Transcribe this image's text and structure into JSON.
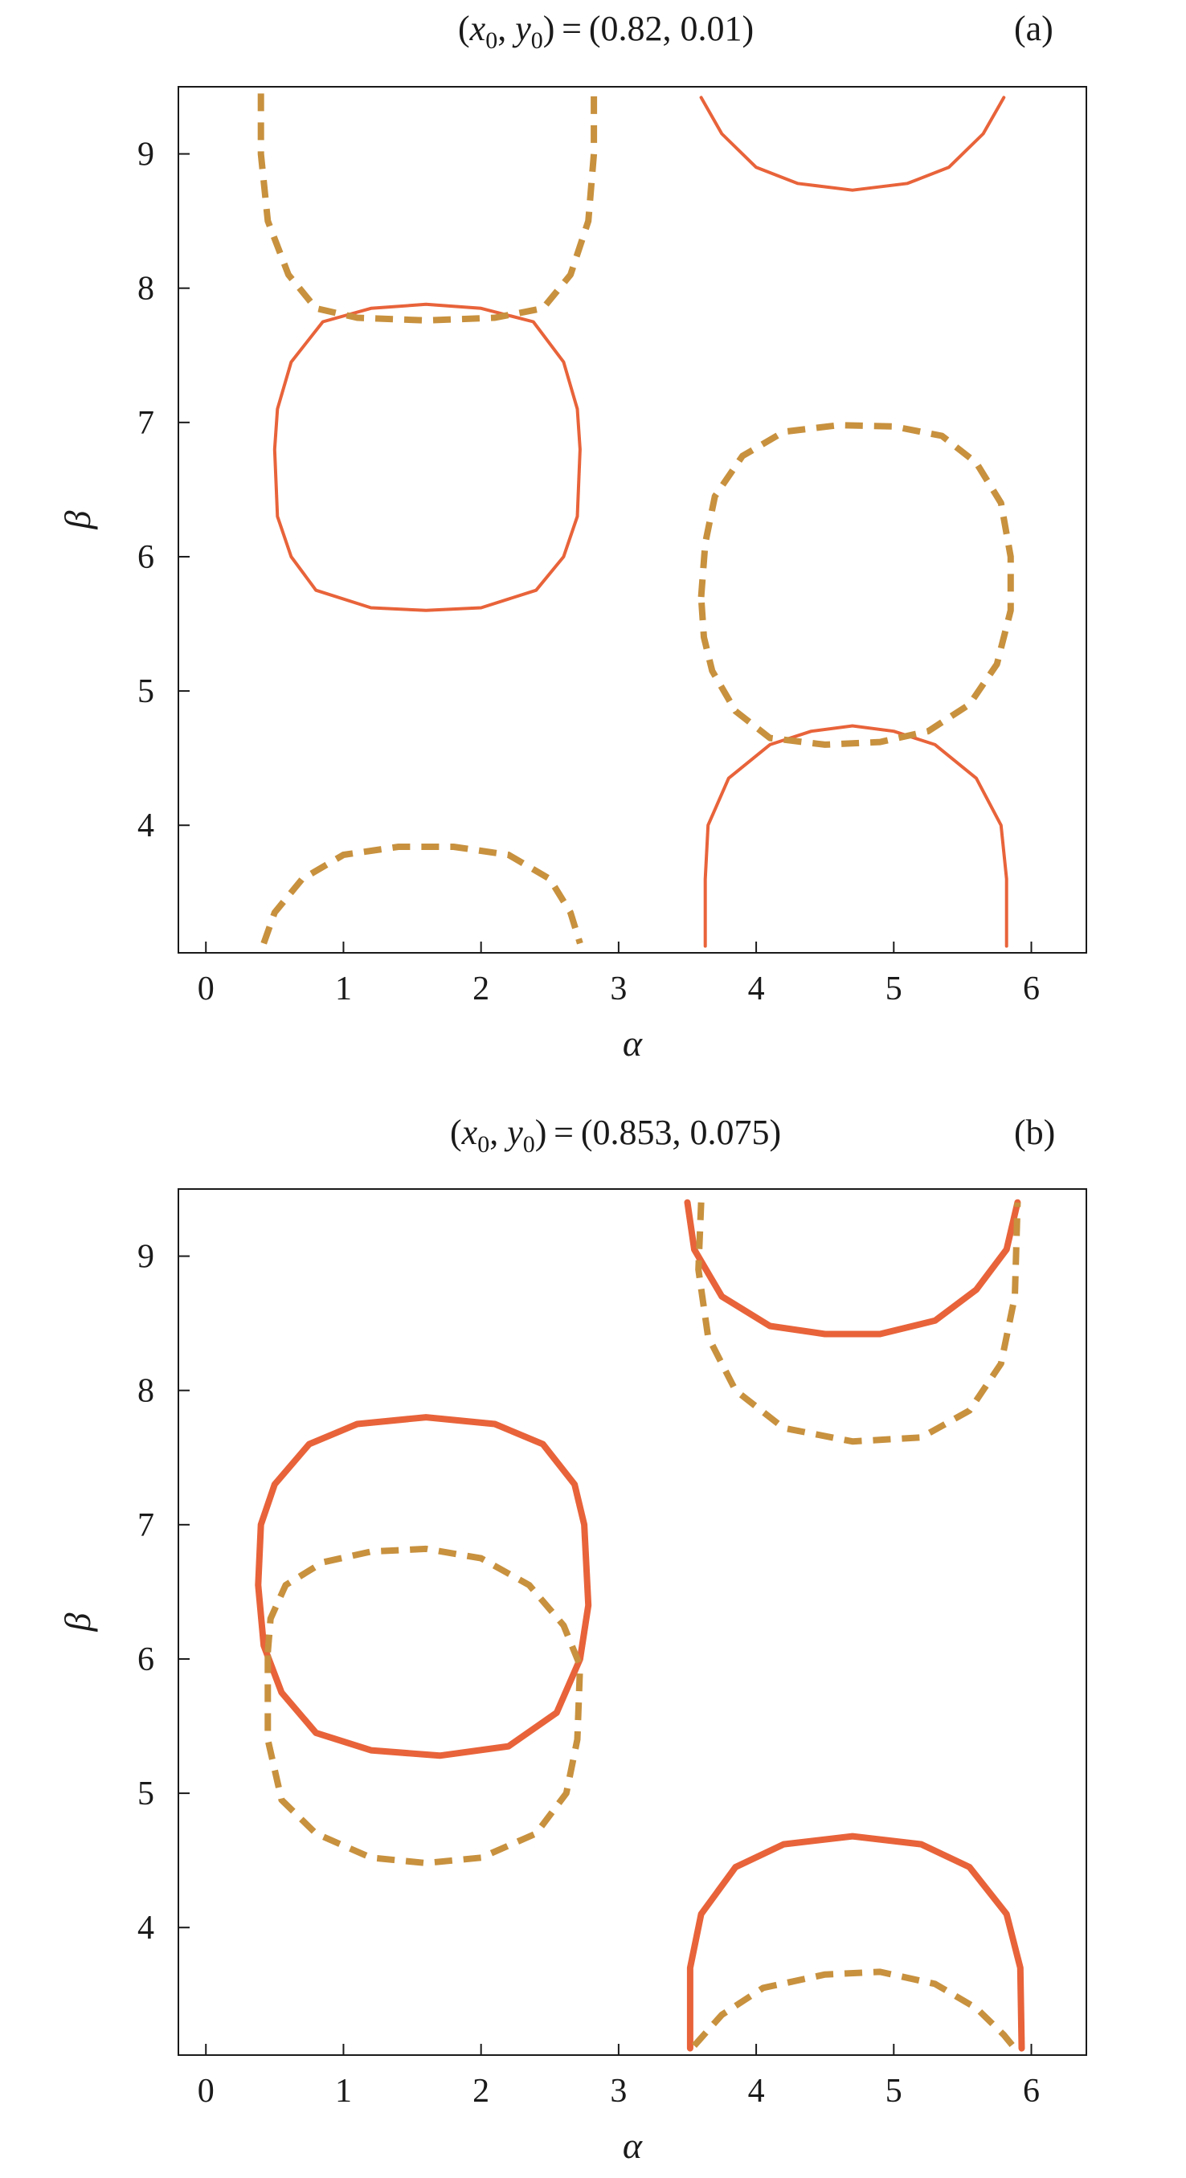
{
  "chart_data": [
    {
      "type": "line",
      "panel_label": "(a)",
      "title_prefix": "(",
      "title_x": "x",
      "title_sub0": "0",
      "title_comma": ", ",
      "title_y": "y",
      "title_sub1": "0",
      "title_equals": ") = ",
      "title_values": "(0.82, 0.01)",
      "xlabel": "α",
      "ylabel": "β",
      "xlim": [
        -0.2,
        6.4
      ],
      "ylim": [
        3.05,
        9.5
      ],
      "xticks": [
        "0",
        "1",
        "2",
        "3",
        "4",
        "5",
        "6"
      ],
      "yticks": [
        "4",
        "5",
        "6",
        "7",
        "8",
        "9"
      ],
      "colors": {
        "solid": "#e8633a",
        "dashed": "#c8913e"
      },
      "series": [
        {
          "style": "solid",
          "points": [
            [
              0.5,
              6.8
            ],
            [
              0.52,
              7.1
            ],
            [
              0.62,
              7.45
            ],
            [
              0.85,
              7.75
            ],
            [
              1.2,
              7.85
            ],
            [
              1.6,
              7.88
            ],
            [
              2.0,
              7.85
            ],
            [
              2.38,
              7.75
            ],
            [
              2.6,
              7.45
            ],
            [
              2.7,
              7.1
            ],
            [
              2.72,
              6.8
            ],
            [
              2.7,
              6.3
            ],
            [
              2.6,
              6.0
            ],
            [
              2.4,
              5.75
            ],
            [
              2.0,
              5.62
            ],
            [
              1.6,
              5.6
            ],
            [
              1.2,
              5.62
            ],
            [
              0.8,
              5.75
            ],
            [
              0.62,
              6.0
            ],
            [
              0.52,
              6.3
            ],
            [
              0.5,
              6.8
            ]
          ]
        },
        {
          "style": "solid",
          "points": [
            [
              3.6,
              9.42
            ],
            [
              3.75,
              9.15
            ],
            [
              4.0,
              8.9
            ],
            [
              4.3,
              8.78
            ],
            [
              4.7,
              8.73
            ],
            [
              5.1,
              8.78
            ],
            [
              5.4,
              8.9
            ],
            [
              5.65,
              9.15
            ],
            [
              5.8,
              9.42
            ]
          ]
        },
        {
          "style": "solid",
          "points": [
            [
              3.63,
              3.1
            ],
            [
              3.63,
              3.6
            ],
            [
              3.65,
              4.0
            ],
            [
              3.8,
              4.35
            ],
            [
              4.1,
              4.6
            ],
            [
              4.4,
              4.7
            ],
            [
              4.7,
              4.74
            ],
            [
              5.0,
              4.7
            ],
            [
              5.3,
              4.6
            ],
            [
              5.6,
              4.35
            ],
            [
              5.78,
              4.0
            ],
            [
              5.82,
              3.6
            ],
            [
              5.82,
              3.1
            ]
          ]
        },
        {
          "style": "dashed",
          "points": [
            [
              0.4,
              9.45
            ],
            [
              0.4,
              9.0
            ],
            [
              0.45,
              8.5
            ],
            [
              0.6,
              8.1
            ],
            [
              0.8,
              7.85
            ],
            [
              1.1,
              7.78
            ],
            [
              1.6,
              7.76
            ],
            [
              2.1,
              7.78
            ],
            [
              2.45,
              7.85
            ],
            [
              2.65,
              8.1
            ],
            [
              2.78,
              8.5
            ],
            [
              2.82,
              9.0
            ],
            [
              2.82,
              9.45
            ]
          ]
        },
        {
          "style": "dashed",
          "points": [
            [
              3.6,
              5.7
            ],
            [
              3.63,
              6.1
            ],
            [
              3.7,
              6.45
            ],
            [
              3.9,
              6.75
            ],
            [
              4.2,
              6.93
            ],
            [
              4.6,
              6.98
            ],
            [
              5.0,
              6.97
            ],
            [
              5.35,
              6.9
            ],
            [
              5.6,
              6.7
            ],
            [
              5.78,
              6.4
            ],
            [
              5.85,
              6.0
            ],
            [
              5.85,
              5.6
            ],
            [
              5.75,
              5.2
            ],
            [
              5.55,
              4.9
            ],
            [
              5.25,
              4.7
            ],
            [
              4.9,
              4.62
            ],
            [
              4.5,
              4.6
            ],
            [
              4.1,
              4.65
            ],
            [
              3.85,
              4.85
            ],
            [
              3.68,
              5.15
            ],
            [
              3.62,
              5.4
            ],
            [
              3.6,
              5.7
            ]
          ]
        },
        {
          "style": "dashed",
          "points": [
            [
              0.42,
              3.12
            ],
            [
              0.5,
              3.35
            ],
            [
              0.7,
              3.6
            ],
            [
              1.0,
              3.78
            ],
            [
              1.4,
              3.84
            ],
            [
              1.8,
              3.84
            ],
            [
              2.2,
              3.78
            ],
            [
              2.5,
              3.6
            ],
            [
              2.65,
              3.35
            ],
            [
              2.72,
              3.12
            ]
          ]
        }
      ]
    },
    {
      "type": "line",
      "panel_label": "(b)",
      "title_prefix": "(",
      "title_x": "x",
      "title_sub0": "0",
      "title_comma": ", ",
      "title_y": "y",
      "title_sub1": "0",
      "title_equals": ") = ",
      "title_values": "(0.853, 0.075)",
      "xlabel": "α",
      "ylabel": "β",
      "xlim": [
        -0.2,
        6.4
      ],
      "ylim": [
        3.05,
        9.5
      ],
      "xticks": [
        "0",
        "1",
        "2",
        "3",
        "4",
        "5",
        "6"
      ],
      "yticks": [
        "4",
        "5",
        "6",
        "7",
        "8",
        "9"
      ],
      "colors": {
        "solid": "#e8633a",
        "dashed": "#c8913e"
      },
      "series": [
        {
          "style": "solid",
          "bold": true,
          "points": [
            [
              0.38,
              6.55
            ],
            [
              0.4,
              7.0
            ],
            [
              0.5,
              7.3
            ],
            [
              0.75,
              7.6
            ],
            [
              1.1,
              7.75
            ],
            [
              1.6,
              7.8
            ],
            [
              2.1,
              7.75
            ],
            [
              2.45,
              7.6
            ],
            [
              2.68,
              7.3
            ],
            [
              2.75,
              7.0
            ],
            [
              2.78,
              6.4
            ],
            [
              2.72,
              6.0
            ],
            [
              2.55,
              5.6
            ],
            [
              2.2,
              5.35
            ],
            [
              1.7,
              5.28
            ],
            [
              1.2,
              5.32
            ],
            [
              0.8,
              5.45
            ],
            [
              0.55,
              5.75
            ],
            [
              0.42,
              6.1
            ],
            [
              0.38,
              6.55
            ]
          ]
        },
        {
          "style": "solid",
          "bold": true,
          "points": [
            [
              3.5,
              9.4
            ],
            [
              3.55,
              9.05
            ],
            [
              3.75,
              8.7
            ],
            [
              4.1,
              8.48
            ],
            [
              4.5,
              8.42
            ],
            [
              4.9,
              8.42
            ],
            [
              5.3,
              8.52
            ],
            [
              5.6,
              8.75
            ],
            [
              5.82,
              9.05
            ],
            [
              5.9,
              9.4
            ]
          ]
        },
        {
          "style": "solid",
          "bold": true,
          "points": [
            [
              3.52,
              3.1
            ],
            [
              3.52,
              3.7
            ],
            [
              3.6,
              4.1
            ],
            [
              3.85,
              4.45
            ],
            [
              4.2,
              4.62
            ],
            [
              4.7,
              4.68
            ],
            [
              5.2,
              4.62
            ],
            [
              5.55,
              4.45
            ],
            [
              5.82,
              4.1
            ],
            [
              5.92,
              3.7
            ],
            [
              5.93,
              3.1
            ]
          ]
        },
        {
          "style": "dashed",
          "points": [
            [
              0.45,
              6.05
            ],
            [
              0.47,
              6.3
            ],
            [
              0.58,
              6.55
            ],
            [
              0.85,
              6.72
            ],
            [
              1.2,
              6.8
            ],
            [
              1.6,
              6.82
            ],
            [
              2.0,
              6.75
            ],
            [
              2.35,
              6.55
            ],
            [
              2.6,
              6.25
            ],
            [
              2.72,
              5.95
            ],
            [
              2.7,
              5.4
            ],
            [
              2.62,
              5.0
            ],
            [
              2.4,
              4.7
            ],
            [
              2.0,
              4.52
            ],
            [
              1.6,
              4.48
            ],
            [
              1.2,
              4.52
            ],
            [
              0.8,
              4.7
            ],
            [
              0.55,
              4.95
            ],
            [
              0.45,
              5.4
            ],
            [
              0.45,
              6.05
            ]
          ]
        },
        {
          "style": "dashed",
          "points": [
            [
              3.6,
              9.4
            ],
            [
              3.58,
              8.9
            ],
            [
              3.65,
              8.4
            ],
            [
              3.85,
              8.0
            ],
            [
              4.2,
              7.72
            ],
            [
              4.7,
              7.62
            ],
            [
              5.2,
              7.65
            ],
            [
              5.55,
              7.85
            ],
            [
              5.78,
              8.2
            ],
            [
              5.88,
              8.7
            ],
            [
              5.9,
              9.4
            ]
          ]
        },
        {
          "style": "dashed",
          "points": [
            [
              3.55,
              3.12
            ],
            [
              3.75,
              3.35
            ],
            [
              4.05,
              3.55
            ],
            [
              4.5,
              3.65
            ],
            [
              4.9,
              3.67
            ],
            [
              5.3,
              3.58
            ],
            [
              5.6,
              3.4
            ],
            [
              5.8,
              3.2
            ],
            [
              5.88,
              3.1
            ]
          ]
        }
      ]
    }
  ]
}
